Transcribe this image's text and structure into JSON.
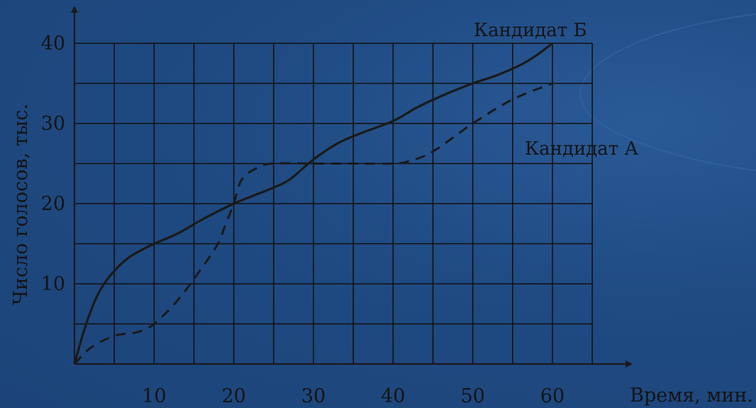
{
  "chart_data": {
    "type": "line",
    "xlabel": "Время, мин.",
    "ylabel": "Число голосов, тыс.",
    "xlim": [
      0,
      65
    ],
    "ylim": [
      0,
      40
    ],
    "x_ticks": [
      10,
      20,
      30,
      40,
      50,
      60
    ],
    "y_ticks": [
      10,
      20,
      30,
      40
    ],
    "grid": true,
    "series": [
      {
        "name": "Кандидат А",
        "style": "dashed",
        "x": [
          0,
          2,
          5,
          8,
          10,
          13,
          16,
          18,
          19,
          20,
          21,
          23,
          25,
          30,
          35,
          40,
          42,
          45,
          50,
          55,
          60
        ],
        "y": [
          0,
          2,
          3.5,
          4,
          5,
          8,
          12,
          15,
          17.5,
          20,
          23,
          24.5,
          25,
          25,
          25,
          25,
          25.3,
          26.5,
          30,
          33,
          35
        ]
      },
      {
        "name": "Кандидат Б",
        "style": "solid",
        "x": [
          0,
          1,
          2,
          3,
          4,
          5,
          6,
          7,
          8,
          10,
          13,
          16,
          20,
          23,
          25,
          27,
          30,
          33,
          36,
          40,
          43,
          46,
          50,
          53,
          56,
          58,
          60
        ],
        "y": [
          0,
          3.5,
          6.5,
          8.8,
          10.4,
          11.6,
          12.6,
          13.4,
          14,
          15,
          16.3,
          18,
          20,
          21.2,
          22,
          23,
          25.5,
          27.5,
          28.8,
          30.3,
          32,
          33.4,
          35,
          36,
          37.3,
          38.5,
          40
        ]
      }
    ],
    "colors": {
      "line": "#1a1a1a",
      "grid": "#111111",
      "background": "#1f4a82"
    }
  }
}
